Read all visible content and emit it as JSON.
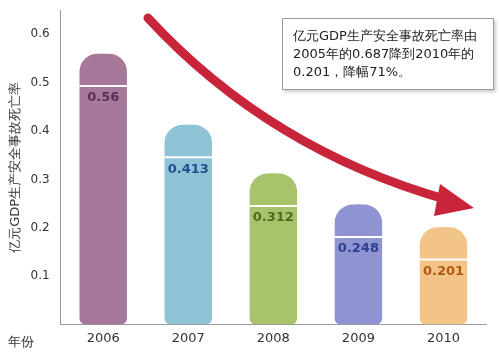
{
  "chart_data": {
    "type": "bar",
    "y_label": "亿元GDP生产安全事故死亡率",
    "x_label": "年份",
    "annotation": "亿元GDP生产安全事故死亡率由2005年的0.687降到2010年的0.201，降幅71%。",
    "categories": [
      "2006",
      "2007",
      "2008",
      "2009",
      "2010"
    ],
    "values": [
      0.56,
      0.413,
      0.312,
      0.248,
      0.201
    ],
    "colors": [
      "#a8789a",
      "#8fc4d6",
      "#a8c36a",
      "#8e93d1",
      "#f2c488"
    ],
    "ylim": [
      0,
      0.65
    ],
    "yticks": [
      0.1,
      0.2,
      0.3,
      0.4,
      0.5,
      0.6
    ],
    "grid": false,
    "data_labels": true
  }
}
